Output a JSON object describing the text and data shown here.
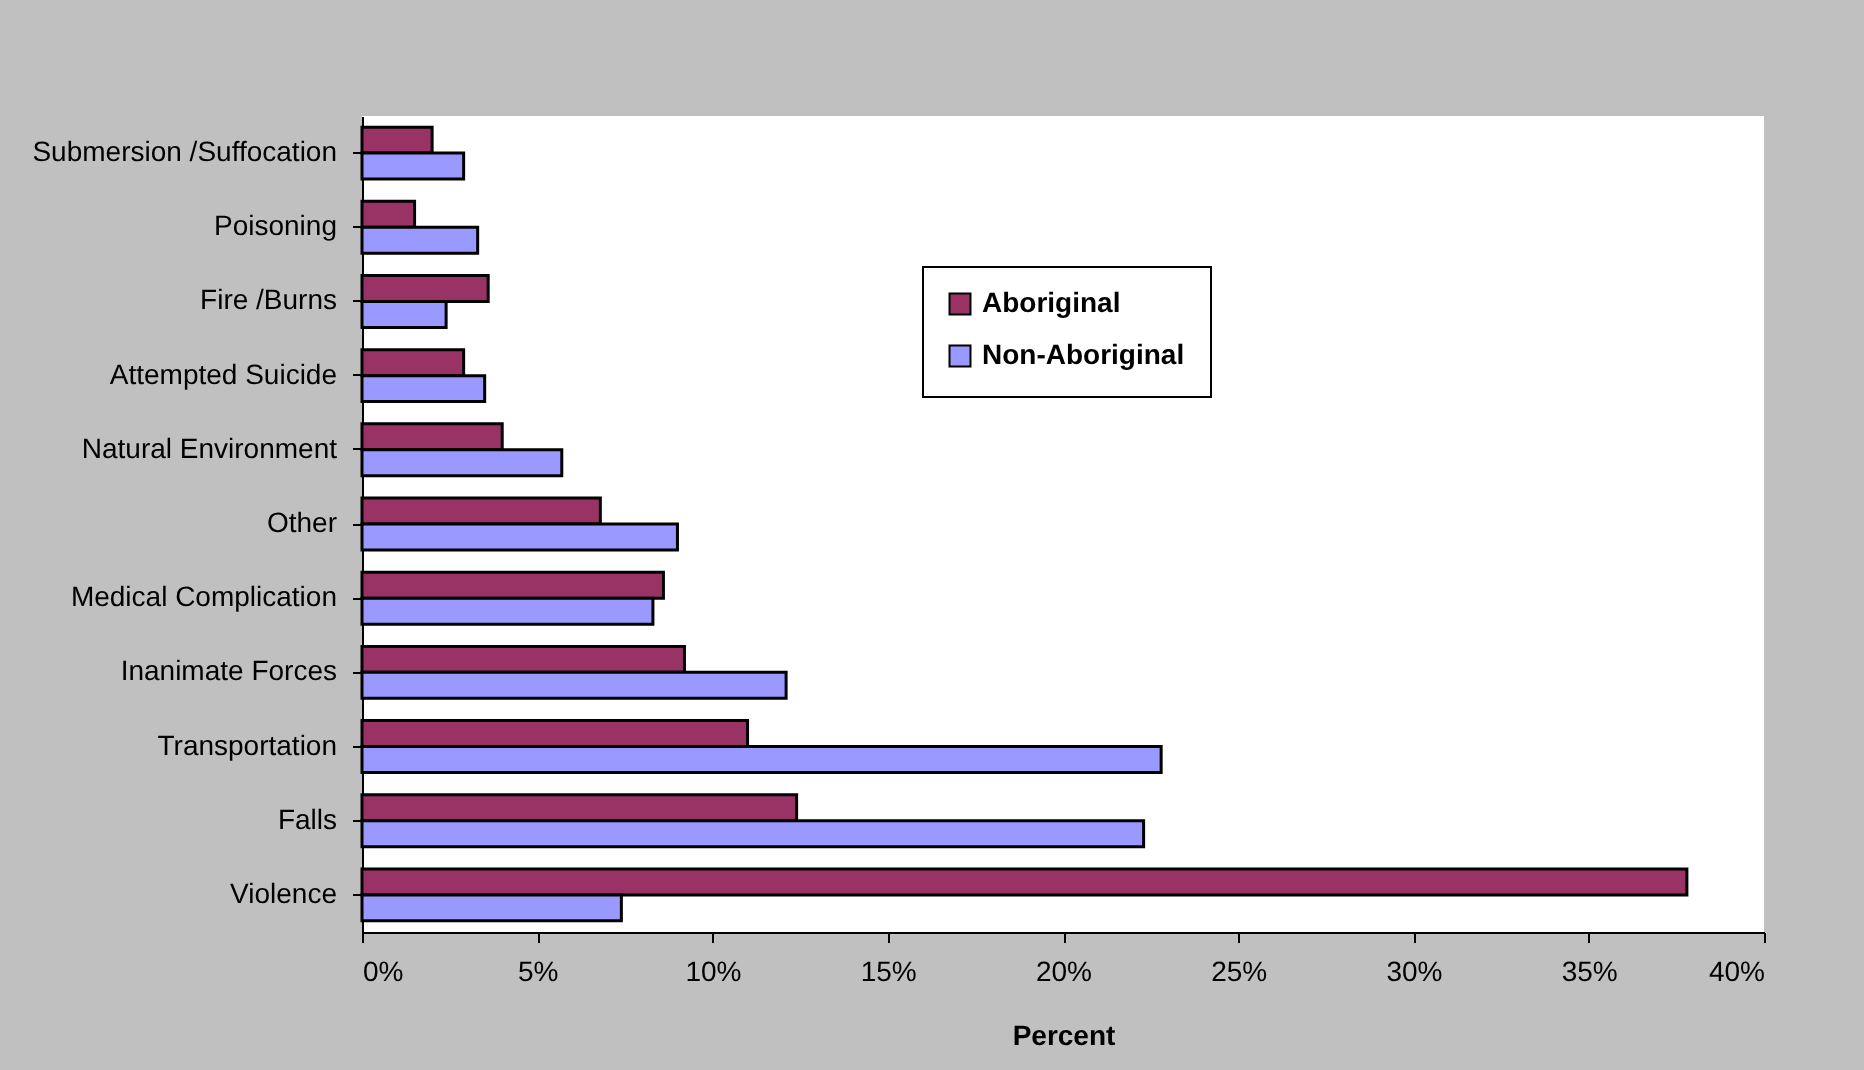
{
  "chart_data": {
    "type": "bar",
    "orientation": "horizontal",
    "xlabel": "Percent",
    "categories": [
      "Submersion /Suffocation",
      "Poisoning",
      "Fire /Burns",
      "Attempted Suicide",
      "Natural Environment",
      "Other",
      "Medical Complication",
      "Inanimate Forces",
      "Transportation",
      "Falls",
      "Violence"
    ],
    "series": [
      {
        "name": "Aboriginal",
        "color": "#993366",
        "values": [
          2.0,
          1.5,
          3.6,
          2.9,
          4.0,
          6.8,
          8.6,
          9.2,
          11.0,
          12.4,
          37.8
        ]
      },
      {
        "name": "Non-Aboriginal",
        "color": "#9999ff",
        "values": [
          2.9,
          3.3,
          2.4,
          3.5,
          5.7,
          9.0,
          8.3,
          12.1,
          22.8,
          22.3,
          7.4
        ]
      }
    ],
    "xlim": [
      0,
      40
    ],
    "xticks": [
      {
        "value": 0,
        "label": "0%"
      },
      {
        "value": 5,
        "label": "5%"
      },
      {
        "value": 10,
        "label": "10%"
      },
      {
        "value": 15,
        "label": "15%"
      },
      {
        "value": 20,
        "label": "20%"
      },
      {
        "value": 25,
        "label": "25%"
      },
      {
        "value": 30,
        "label": "30%"
      },
      {
        "value": 35,
        "label": "35%"
      },
      {
        "value": 40,
        "label": "40%"
      }
    ],
    "grid": false,
    "legend": "top right"
  }
}
